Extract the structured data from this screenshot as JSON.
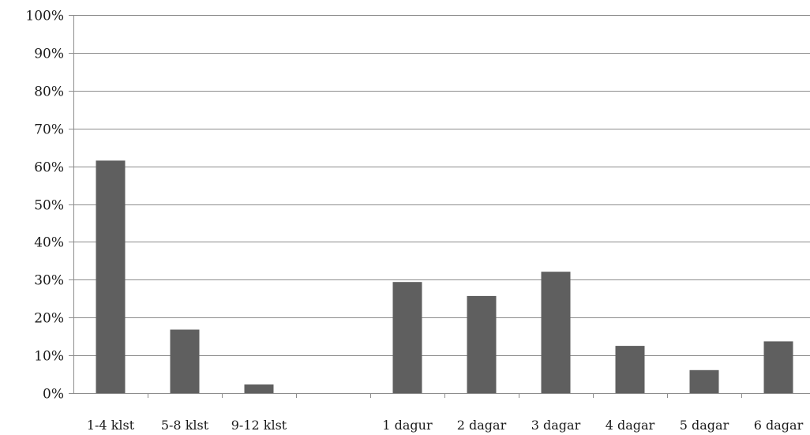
{
  "chart_data": {
    "type": "bar",
    "categories": [
      "1-4 klst",
      "5-8 klst",
      "9-12 klst",
      "",
      "1 dagur",
      "2 dagar",
      "3 dagar",
      "4 dagar",
      "5 dagar",
      "6 dagar"
    ],
    "values": [
      61.5,
      16.8,
      2.3,
      null,
      29.4,
      25.7,
      32.1,
      12.5,
      6.1,
      13.7
    ],
    "unit": "%",
    "ylim": [
      0,
      100
    ],
    "yticks": [
      "0%",
      "10%",
      "20%",
      "30%",
      "40%",
      "50%",
      "60%",
      "70%",
      "80%",
      "90%",
      "100%"
    ],
    "grid": true,
    "legend": "none",
    "title": "",
    "xlabel": "",
    "ylabel": "",
    "bar_color": "#5f5f5f"
  }
}
